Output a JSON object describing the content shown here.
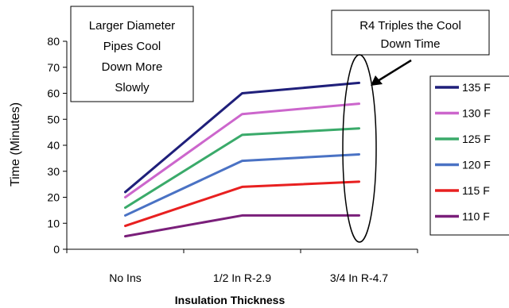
{
  "chart_data": {
    "type": "line",
    "categories": [
      "No Ins",
      "1/2 In R-2.9",
      "3/4 In R-4.7"
    ],
    "series": [
      {
        "name": "135 F",
        "color": "#1f1f7a",
        "values": [
          22,
          60,
          64
        ]
      },
      {
        "name": "130 F",
        "color": "#cc66cc",
        "values": [
          20,
          52,
          56
        ]
      },
      {
        "name": "125 F",
        "color": "#3aaa6a",
        "values": [
          16,
          44,
          46.5
        ]
      },
      {
        "name": "120 F",
        "color": "#4a72c4",
        "values": [
          13,
          34,
          36.5
        ]
      },
      {
        "name": "115 F",
        "color": "#e82020",
        "values": [
          9,
          24,
          26
        ]
      },
      {
        "name": "110 F",
        "color": "#7a1f7a",
        "values": [
          5,
          13,
          13
        ]
      }
    ],
    "ylabel": "Time (Minutes)",
    "xlabel": "Insulation Thickness",
    "ylim": [
      0,
      80
    ],
    "yticks": [
      0,
      10,
      20,
      30,
      40,
      50,
      60,
      70,
      80
    ],
    "legend": "right",
    "annotations": [
      {
        "name": "annotation-diameter",
        "lines": [
          "Larger Diameter",
          "Pipes Cool",
          "Down More",
          "Slowly"
        ]
      },
      {
        "name": "annotation-r4",
        "lines": [
          "R4 Triples the Cool",
          "Down Time"
        ]
      }
    ]
  }
}
